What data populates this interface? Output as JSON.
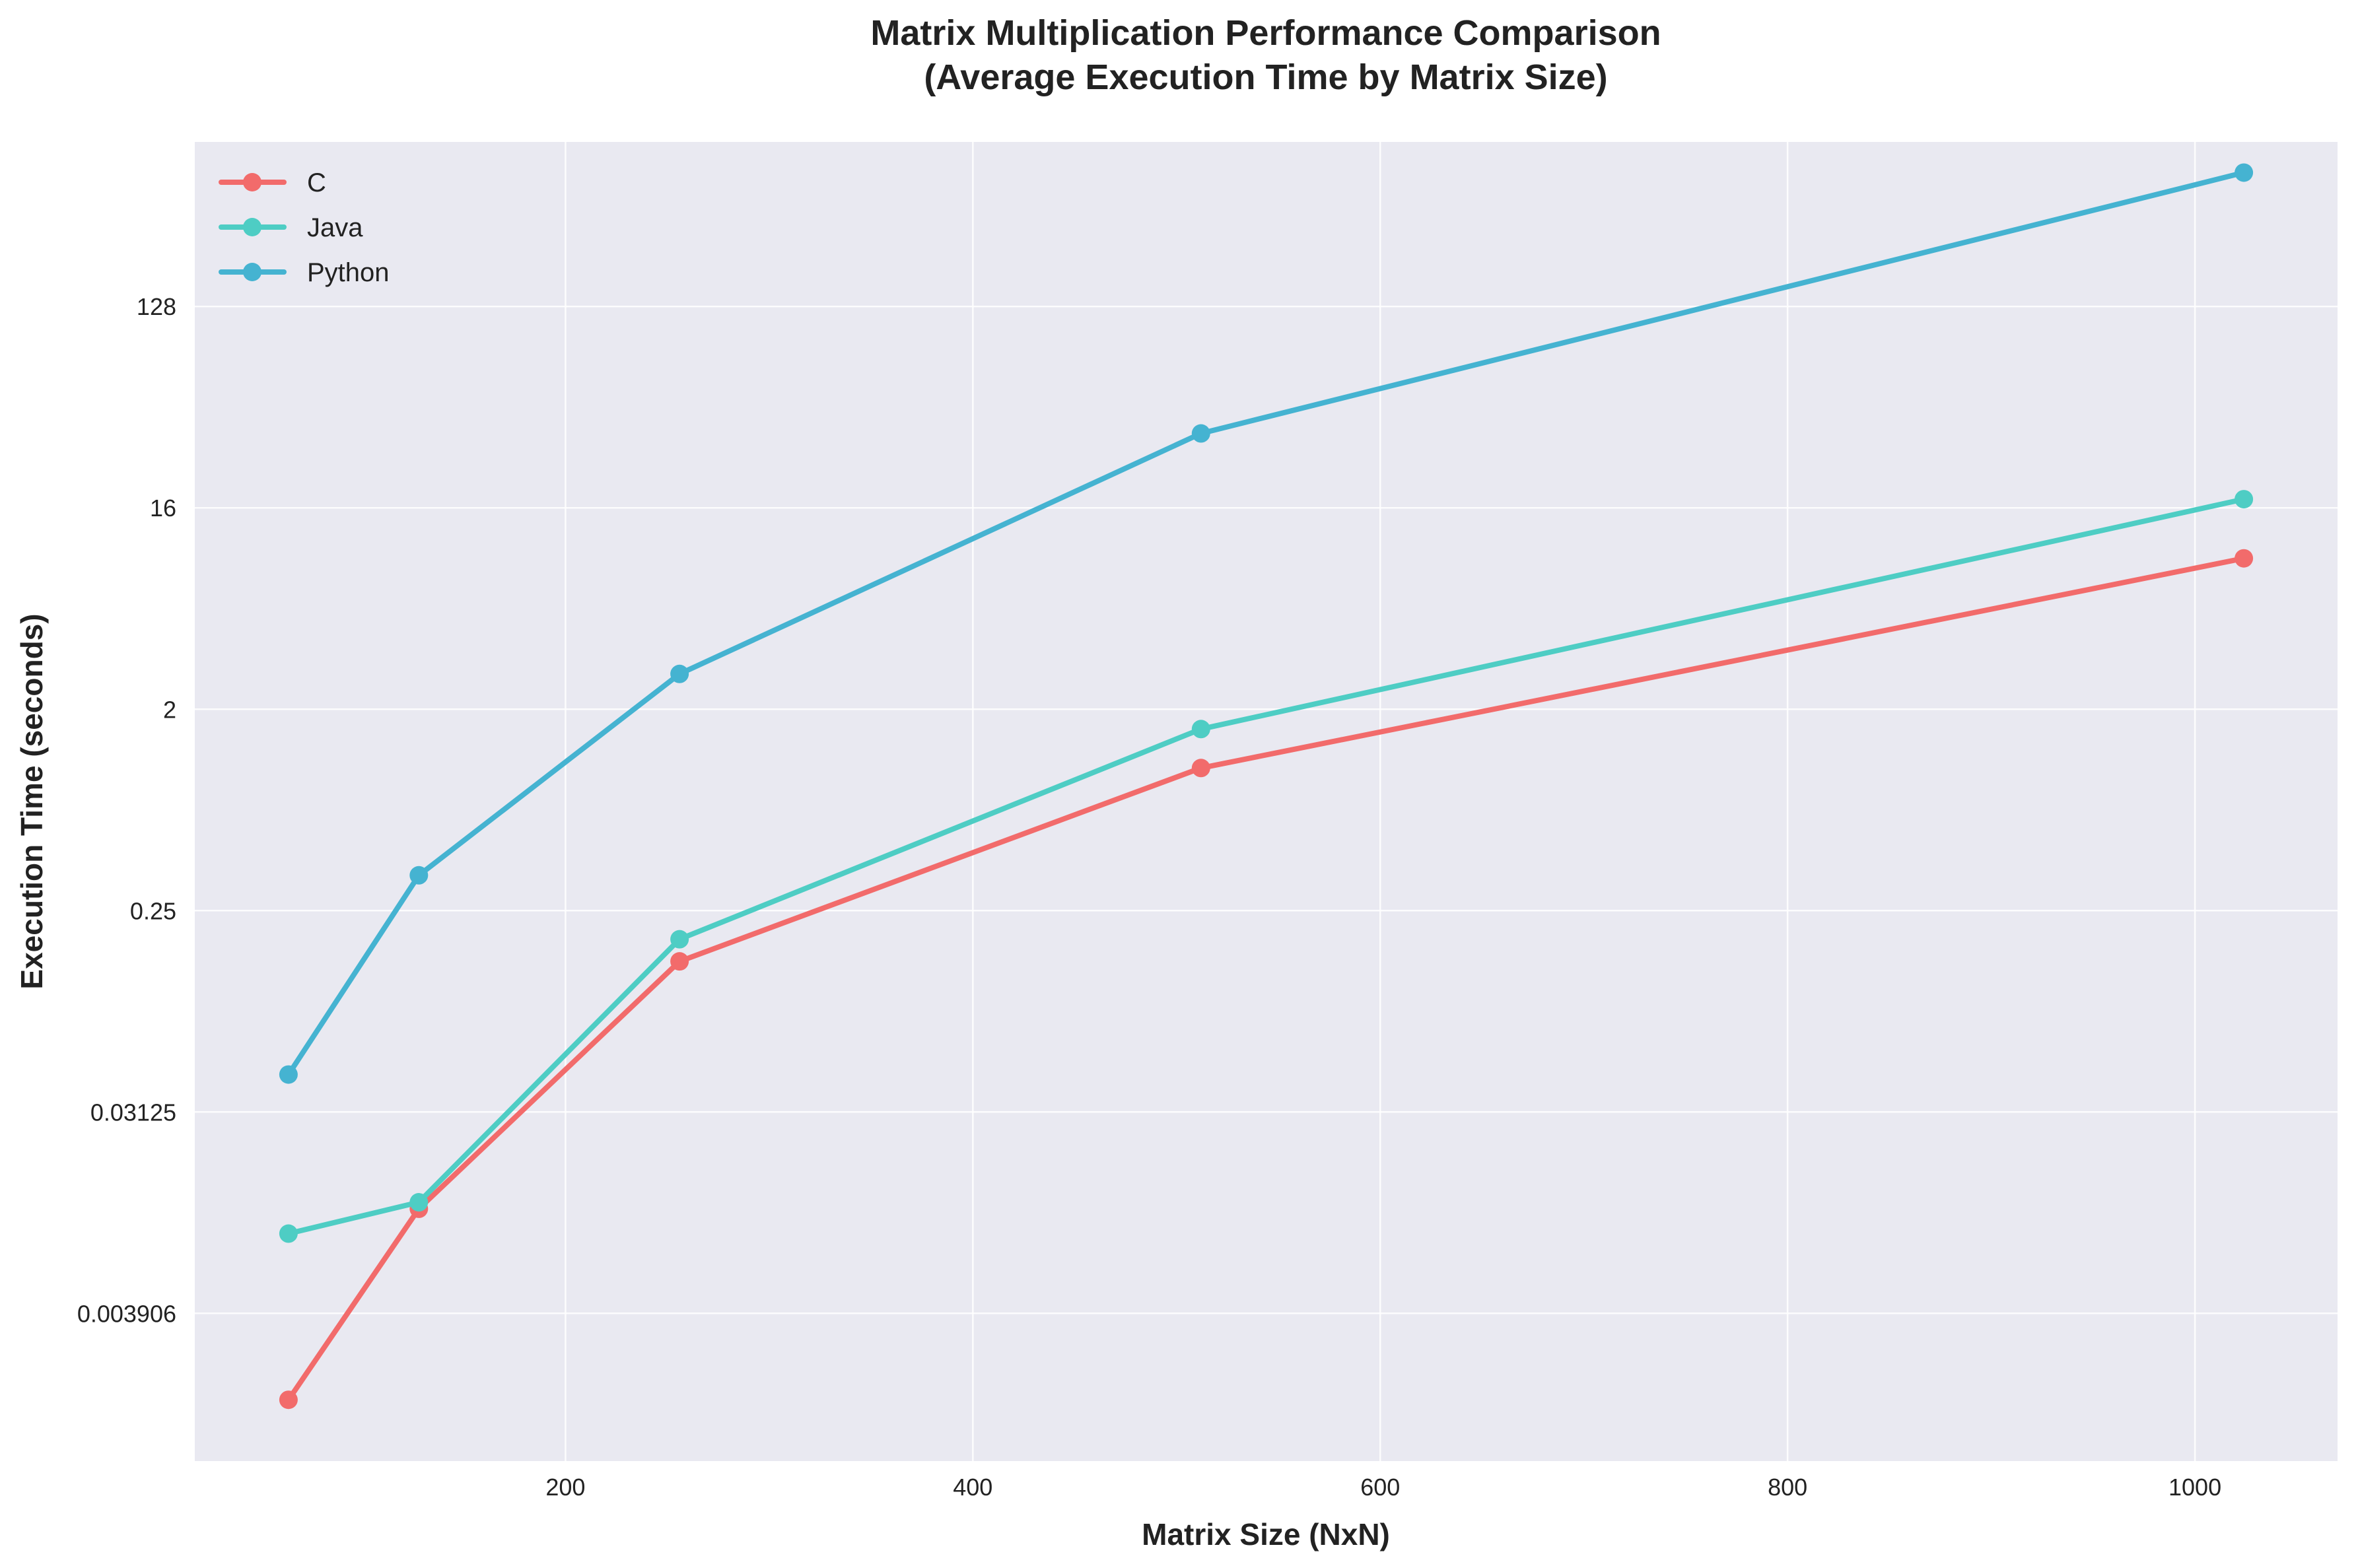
{
  "chart_data": {
    "type": "line",
    "title_line1": "Matrix Multiplication Performance Comparison",
    "title_line2": "(Average Execution Time by Matrix Size)",
    "xlabel": "Matrix Size (NxN)",
    "ylabel": "Execution Time (seconds)",
    "x": [
      64,
      128,
      256,
      512,
      1024
    ],
    "xlim": [
      18,
      1070
    ],
    "ylim": [
      0.00085,
      700
    ],
    "yscale": "log2",
    "x_ticks": [
      200,
      400,
      600,
      800,
      1000
    ],
    "y_ticks": [
      {
        "value": 0.00390625,
        "label": "0.003906"
      },
      {
        "value": 0.03125,
        "label": "0.03125"
      },
      {
        "value": 0.25,
        "label": "0.25"
      },
      {
        "value": 2,
        "label": "2"
      },
      {
        "value": 16,
        "label": "16"
      },
      {
        "value": 128,
        "label": "128"
      }
    ],
    "grid": true,
    "legend_position": "top-left",
    "series": [
      {
        "name": "C",
        "color": "#f26b6b",
        "values": [
          0.0016,
          0.0115,
          0.148,
          1.09,
          9.5
        ]
      },
      {
        "name": "Java",
        "color": "#4ecdc4",
        "values": [
          0.0089,
          0.0123,
          0.186,
          1.63,
          17.5
        ]
      },
      {
        "name": "Python",
        "color": "#45b3d1",
        "values": [
          0.046,
          0.36,
          2.88,
          34.5,
          510
        ]
      }
    ]
  }
}
